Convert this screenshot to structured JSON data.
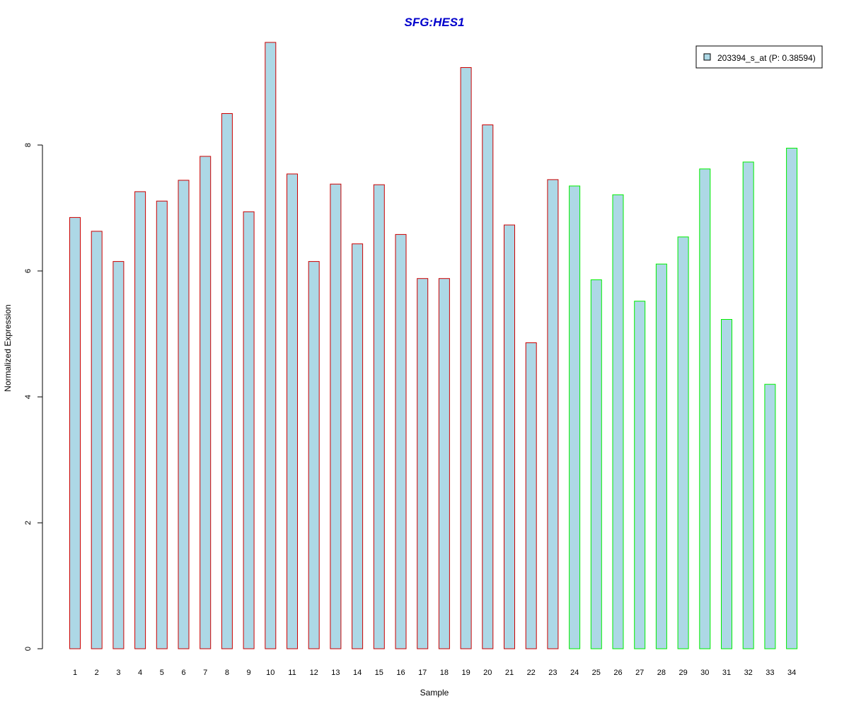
{
  "chart_data": {
    "type": "bar",
    "title": "SFG:HES1",
    "xlabel": "Sample",
    "ylabel": "Normalized Expression",
    "ylim": [
      0,
      9.6
    ],
    "yticks": [
      0,
      2,
      4,
      6,
      8
    ],
    "categories": [
      "1",
      "2",
      "3",
      "4",
      "5",
      "6",
      "7",
      "8",
      "9",
      "10",
      "11",
      "12",
      "13",
      "14",
      "15",
      "16",
      "17",
      "18",
      "19",
      "20",
      "21",
      "22",
      "23",
      "24",
      "25",
      "26",
      "27",
      "28",
      "29",
      "30",
      "31",
      "32",
      "33",
      "34"
    ],
    "series": [
      {
        "name": "203394_s_at (P: 0.38594)",
        "values": [
          6.85,
          6.63,
          6.15,
          7.26,
          7.11,
          7.44,
          7.82,
          8.5,
          6.94,
          9.63,
          7.54,
          6.15,
          7.38,
          6.43,
          7.37,
          6.58,
          5.88,
          5.88,
          9.23,
          8.32,
          6.73,
          4.86,
          7.45,
          7.35,
          5.86,
          7.21,
          5.52,
          6.11,
          6.54,
          7.62,
          5.23,
          7.73,
          4.2,
          7.95
        ]
      }
    ],
    "groups": [
      {
        "from": 1,
        "to": 23,
        "border_color": "#cc0000"
      },
      {
        "from": 24,
        "to": 34,
        "border_color": "#00ee00"
      }
    ],
    "bar_fill": "#add8e6",
    "title_color": "#0000cc",
    "grid": false,
    "legend_position": "top-right",
    "legend_labels": [
      "203394_s_at (P: 0.38594)"
    ]
  }
}
